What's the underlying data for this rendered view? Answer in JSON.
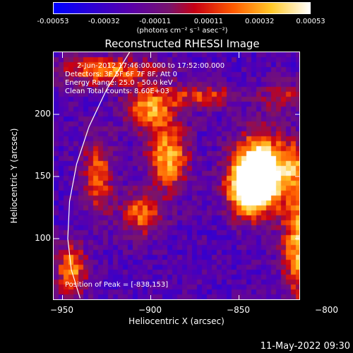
{
  "chart_data": {
    "type": "heatmap",
    "title": "Reconstructed RHESSI Image",
    "xlabel": "Heliocentric X (arcsec)",
    "ylabel": "Heliocentric Y (arcsec)",
    "xlim": [
      -955,
      -815
    ],
    "ylim": [
      50,
      250
    ],
    "x_ticks": [
      -950,
      -900,
      -850,
      -800
    ],
    "y_ticks": [
      100,
      150,
      200
    ],
    "colorbar": {
      "tick_labels": [
        "-0.00053",
        "-0.00032",
        "-0.00011",
        "0.00011",
        "0.00032",
        "0.00053"
      ],
      "tick_values": [
        -0.00053,
        -0.00032,
        -0.00011,
        0.00011,
        0.00032,
        0.00053
      ],
      "range": [
        -0.00053,
        0.00053
      ],
      "unit_label": "(photons cm⁻² s⁻¹ asec⁻²)"
    },
    "annotations": [
      "2-Jun-2012 17:46:00.000 to 17:52:00.000",
      "Detectors: 3F 5F 6F 7F 8F, Att 0",
      "Energy Range: 25.0 - 50.0 keV",
      "Clean    Total counts: 8.60E+03"
    ],
    "peak_label": "Position of Peak = [-838,153]",
    "peak_position": [
      -838,
      153
    ],
    "sources": [
      {
        "x": -838,
        "y": 153,
        "sx": 10,
        "sy": 20,
        "amp": 1.0
      },
      {
        "x": -845,
        "y": 140,
        "sx": 8,
        "sy": 14,
        "amp": 0.6
      },
      {
        "x": -890,
        "y": 165,
        "sx": 8,
        "sy": 18,
        "amp": 0.55
      },
      {
        "x": -900,
        "y": 205,
        "sx": 10,
        "sy": 12,
        "amp": 0.5
      },
      {
        "x": -925,
        "y": 235,
        "sx": 20,
        "sy": 8,
        "amp": 0.45
      },
      {
        "x": -870,
        "y": 215,
        "sx": 14,
        "sy": 6,
        "amp": 0.35
      },
      {
        "x": -905,
        "y": 120,
        "sx": 8,
        "sy": 12,
        "amp": 0.45
      },
      {
        "x": -930,
        "y": 150,
        "sx": 6,
        "sy": 22,
        "amp": 0.4
      },
      {
        "x": -945,
        "y": 75,
        "sx": 6,
        "sy": 14,
        "amp": 0.5
      },
      {
        "x": -815,
        "y": 95,
        "sx": 7,
        "sy": 30,
        "amp": 0.6
      },
      {
        "x": -818,
        "y": 160,
        "sx": 6,
        "sy": 14,
        "amp": 0.35
      },
      {
        "x": -825,
        "y": 215,
        "sx": 8,
        "sy": 8,
        "amp": 0.3
      }
    ],
    "limb_curve": [
      [
        -940,
        52
      ],
      [
        -945,
        75
      ],
      [
        -947,
        100
      ],
      [
        -946,
        130
      ],
      [
        -942,
        160
      ],
      [
        -935,
        190
      ],
      [
        -925,
        220
      ],
      [
        -912,
        250
      ]
    ]
  },
  "annotation_peak": "Position of Peak = [-838,153]",
  "timestamp": "11-May-2022 09:30"
}
